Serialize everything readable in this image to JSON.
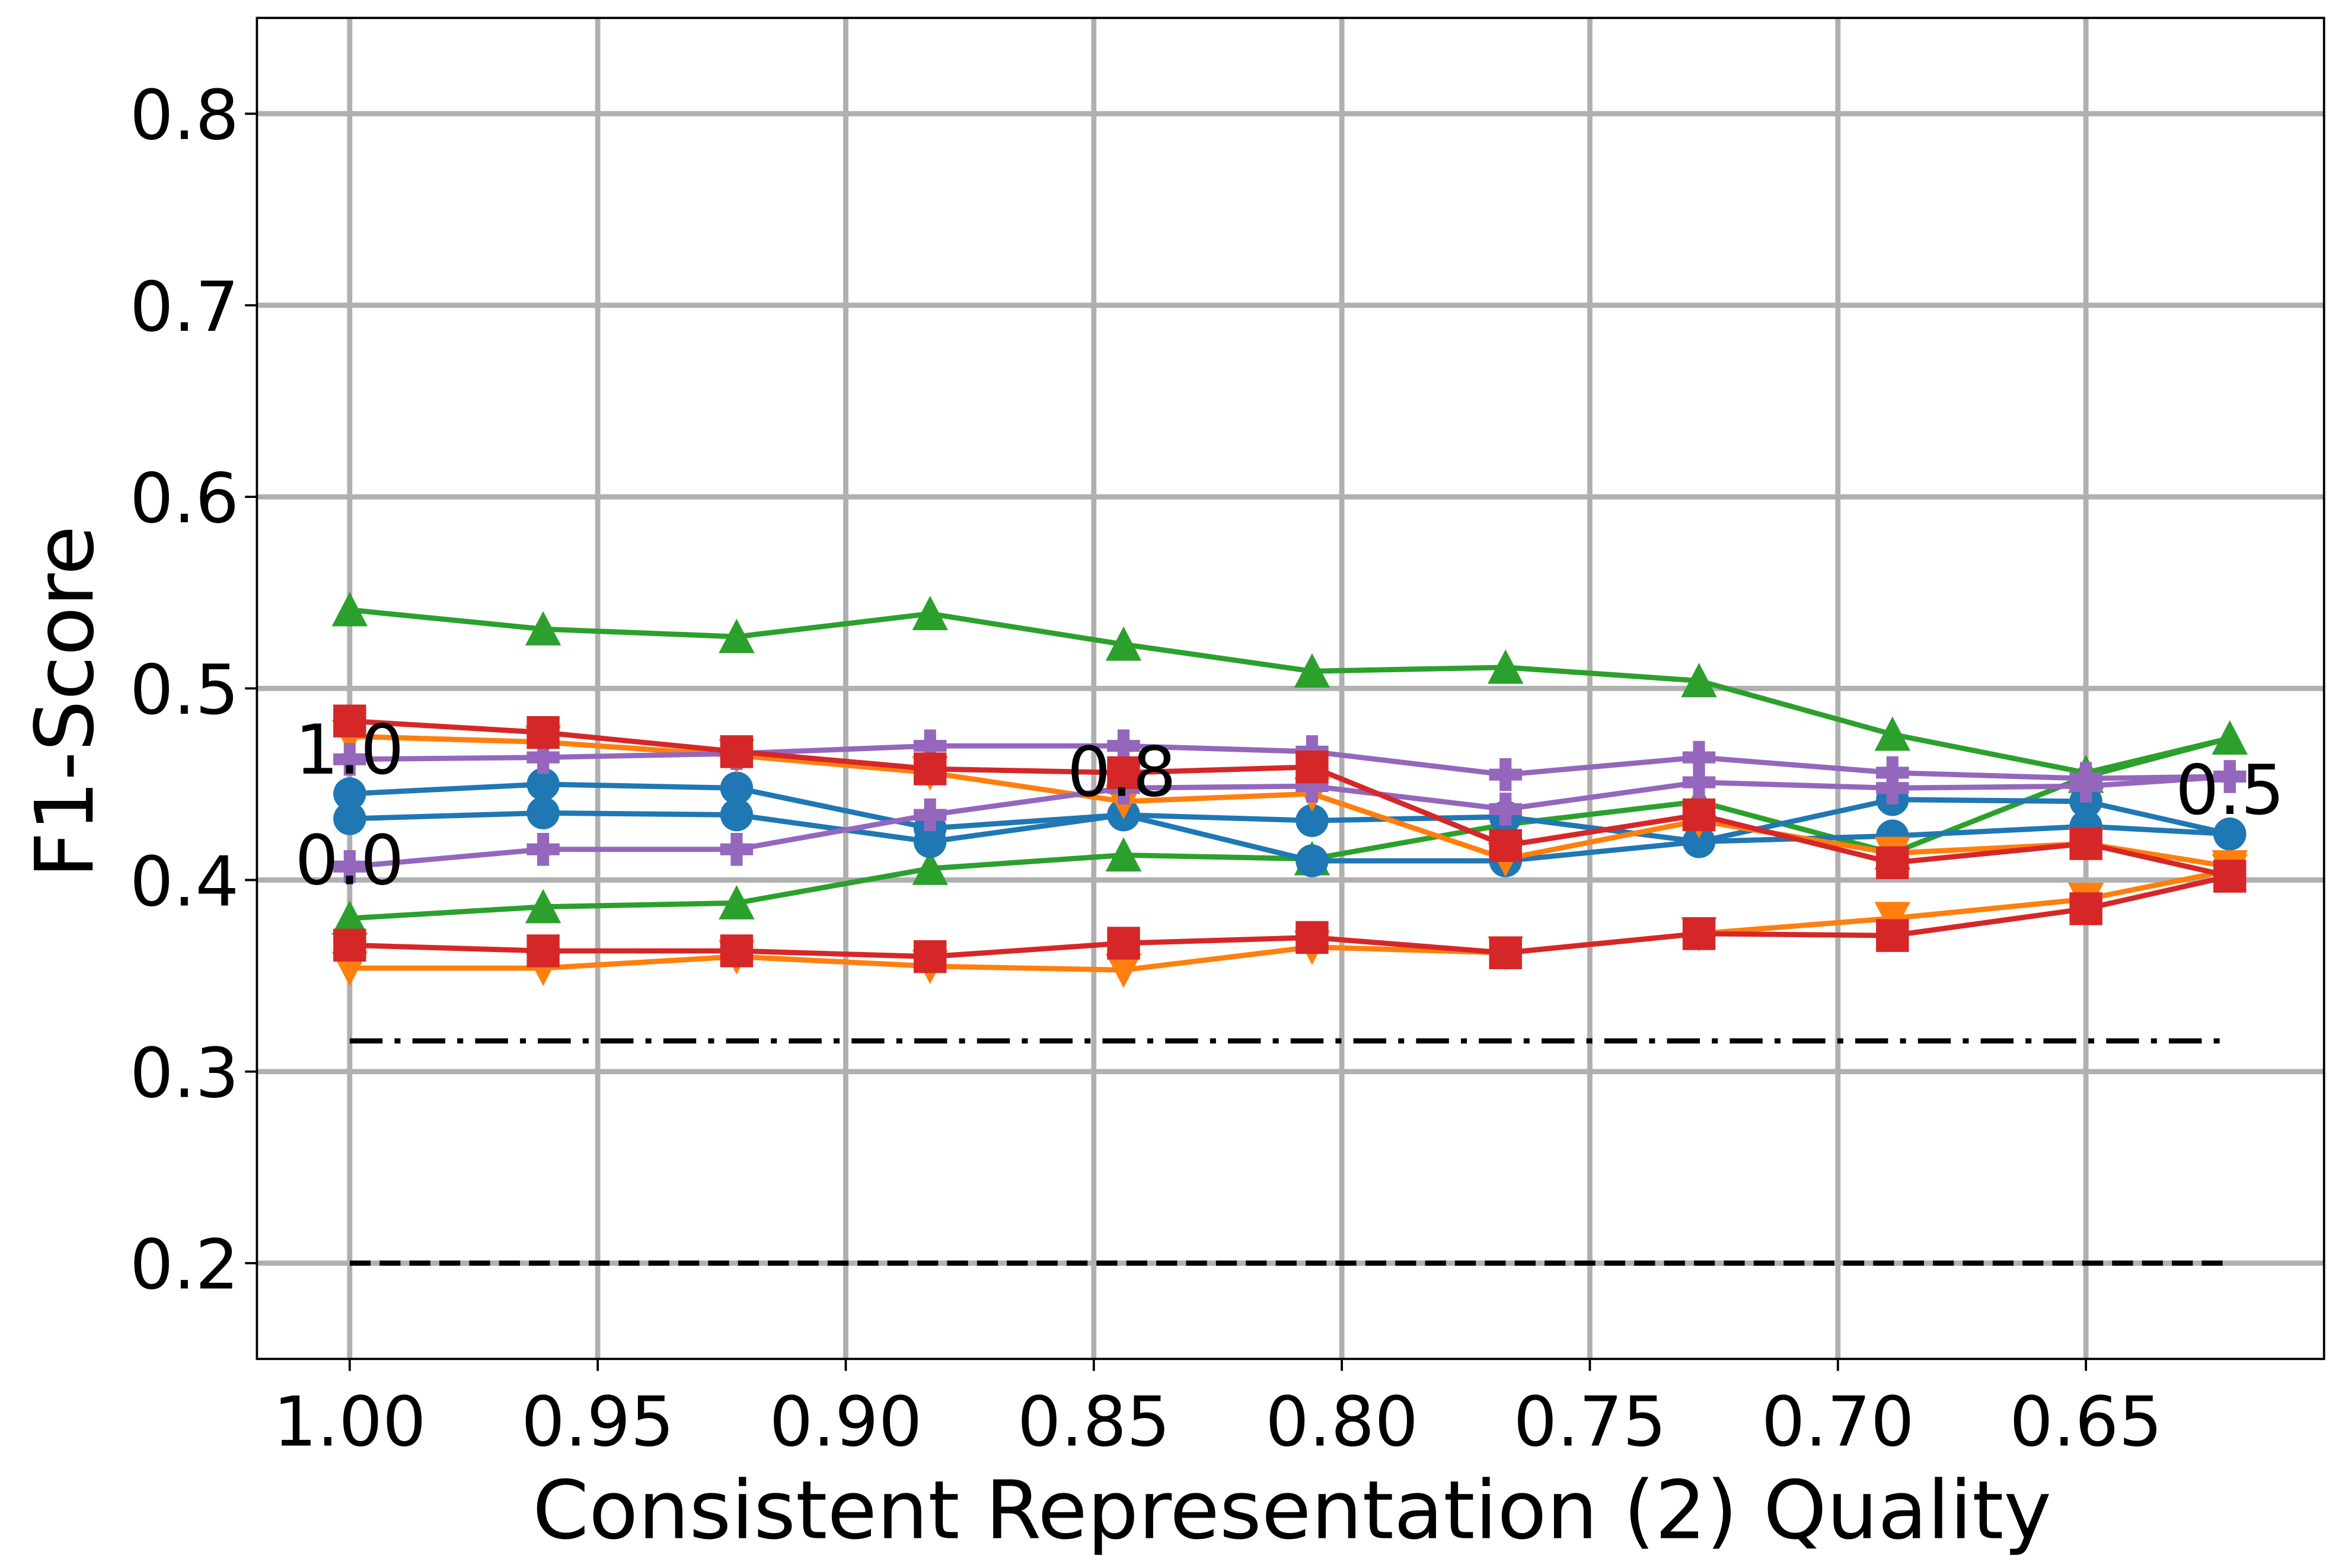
{
  "chart_data": {
    "type": "line",
    "xlabel": "Consistent Representation (2) Quality",
    "ylabel": "F1-Score",
    "x": [
      1.0,
      0.961,
      0.922,
      0.883,
      0.844,
      0.806,
      0.767,
      0.728,
      0.689,
      0.65,
      0.621
    ],
    "xlim": [
      1.0187,
      0.602
    ],
    "ylim": [
      0.15,
      0.85
    ],
    "xticks": [
      {
        "value": 1.0,
        "label": "1.00"
      },
      0.95,
      {
        "value": 0.9,
        "label": "0.90"
      },
      0.85,
      {
        "value": 0.8,
        "label": "0.80"
      },
      0.75,
      {
        "value": 0.7,
        "label": "0.70"
      },
      0.65
    ],
    "yticks": [
      0.2,
      0.3,
      0.4,
      0.5,
      0.6,
      0.7,
      0.8
    ],
    "grid": true,
    "series": [
      {
        "color": "#2ca02c",
        "marker": "triangle-up",
        "values": [
          0.541,
          0.531,
          0.527,
          0.539,
          0.523,
          0.509,
          0.511,
          0.504,
          0.476,
          0.456,
          0.474
        ]
      },
      {
        "color": "#2ca02c",
        "marker": "triangle-up",
        "values": [
          0.38,
          0.386,
          0.388,
          0.406,
          0.413,
          0.411,
          0.429,
          0.441,
          0.414,
          0.454,
          0.474
        ]
      },
      {
        "color": "#1f77b4",
        "marker": "circle",
        "values": [
          0.445,
          0.45,
          0.448,
          0.427,
          0.434,
          0.431,
          0.433,
          0.42,
          0.423,
          0.428,
          0.424
        ]
      },
      {
        "color": "#1f77b4",
        "marker": "circle",
        "values": [
          0.432,
          0.435,
          0.434,
          0.42,
          0.434,
          0.41,
          0.41,
          0.42,
          0.442,
          0.441,
          0.424
        ]
      },
      {
        "color": "#ff7f0e",
        "marker": "triangle-down",
        "values": [
          0.475,
          0.472,
          0.465,
          0.456,
          0.441,
          0.445,
          0.411,
          0.431,
          0.414,
          0.419,
          0.407
        ]
      },
      {
        "color": "#ff7f0e",
        "marker": "triangle-down",
        "values": [
          0.354,
          0.354,
          0.36,
          0.355,
          0.353,
          0.365,
          0.362,
          0.372,
          0.38,
          0.39,
          0.405
        ]
      },
      {
        "color": "#9467bd",
        "marker": "plus",
        "values": [
          0.463,
          0.464,
          0.466,
          0.47,
          0.47,
          0.467,
          0.455,
          0.464,
          0.456,
          0.453,
          0.454
        ]
      },
      {
        "color": "#9467bd",
        "marker": "plus",
        "values": [
          0.407,
          0.416,
          0.416,
          0.434,
          0.448,
          0.449,
          0.437,
          0.451,
          0.448,
          0.449,
          0.454
        ]
      },
      {
        "color": "#d62728",
        "marker": "square",
        "values": [
          0.483,
          0.477,
          0.467,
          0.458,
          0.456,
          0.459,
          0.418,
          0.434,
          0.409,
          0.419,
          0.402
        ]
      },
      {
        "color": "#d62728",
        "marker": "square",
        "values": [
          0.366,
          0.363,
          0.363,
          0.36,
          0.367,
          0.37,
          0.362,
          0.372,
          0.371,
          0.385,
          0.402
        ]
      }
    ],
    "hlines": [
      {
        "value": 0.316,
        "style": "dashdot",
        "color": "#000000"
      },
      {
        "value": 0.2,
        "style": "dashed",
        "color": "#000000"
      }
    ],
    "annotations": [
      "1.0",
      "0.0",
      "0.8",
      "0.5"
    ]
  }
}
